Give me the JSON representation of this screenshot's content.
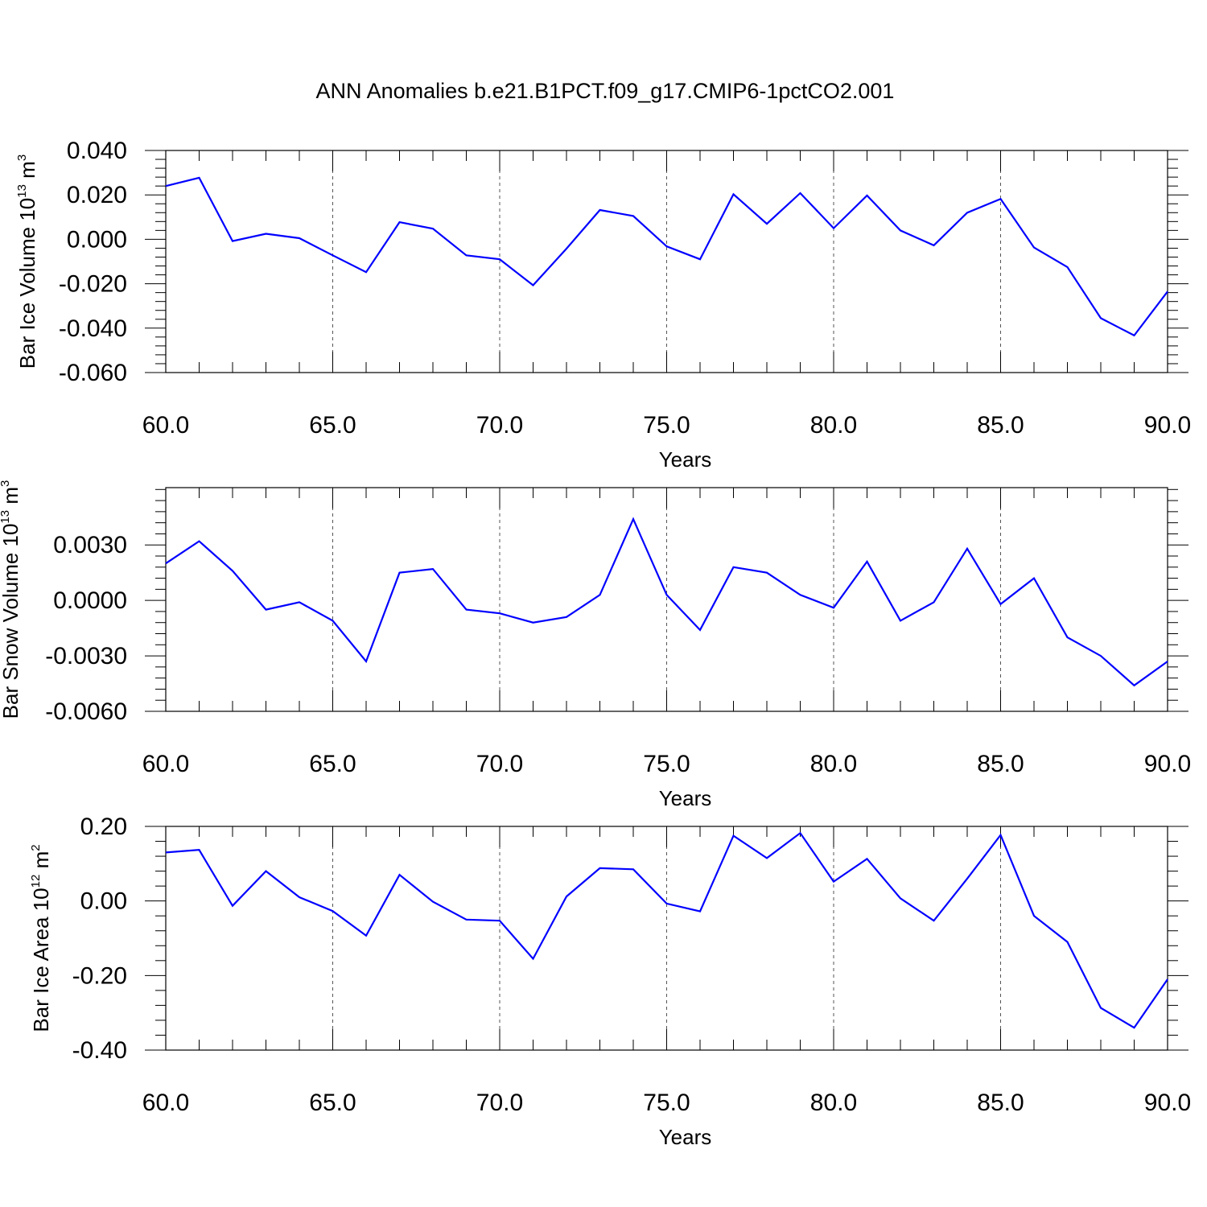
{
  "figure": {
    "title": "ANN Anomalies b.e21.B1PCT.f09_g17.CMIP6-1pctCO2.001",
    "line_color": "#0000ff",
    "grid_color": "#555555"
  },
  "chart_data": [
    {
      "type": "line",
      "xlabel": "Years",
      "ylabel_parts": {
        "main": "Bar Ice Volume 10",
        "sup": "13",
        "unit": " m",
        "unit_sup": "3"
      },
      "xlim": [
        60,
        90
      ],
      "ylim": [
        -0.06,
        0.04
      ],
      "x_ticks": [
        60,
        65,
        70,
        75,
        80,
        85,
        90
      ],
      "x_tick_labels": [
        "60.0",
        "65.0",
        "70.0",
        "75.0",
        "80.0",
        "85.0",
        "90.0"
      ],
      "y_ticks": [
        0.04,
        0.02,
        0.0,
        -0.02,
        -0.04,
        -0.06
      ],
      "y_tick_labels": [
        "0.040",
        "0.020",
        "0.000",
        "-0.020",
        "-0.040",
        "-0.060"
      ],
      "grid": "vertical dashed",
      "x": [
        60,
        61,
        62,
        63,
        64,
        65,
        66,
        67,
        68,
        69,
        70,
        71,
        72,
        73,
        74,
        75,
        76,
        77,
        78,
        79,
        80,
        81,
        82,
        83,
        84,
        85,
        86,
        87,
        88,
        89,
        90
      ],
      "y": [
        0.024,
        0.0277,
        -0.0008,
        0.0025,
        0.0005,
        -0.0072,
        -0.0148,
        0.0077,
        0.0048,
        -0.0072,
        -0.009,
        -0.0207,
        -0.0042,
        0.0132,
        0.0105,
        -0.0032,
        -0.009,
        0.0203,
        0.007,
        0.0208,
        0.005,
        0.0197,
        0.004,
        -0.0027,
        0.012,
        0.0182,
        -0.0037,
        -0.0125,
        -0.0355,
        -0.0433,
        -0.0235
      ]
    },
    {
      "type": "line",
      "xlabel": "Years",
      "ylabel_parts": {
        "main": "Bar Snow Volume 10",
        "sup": "13",
        "unit": " m",
        "unit_sup": "3"
      },
      "xlim": [
        60,
        90
      ],
      "ylim": [
        -0.006,
        0.0061
      ],
      "x_ticks": [
        60,
        65,
        70,
        75,
        80,
        85,
        90
      ],
      "x_tick_labels": [
        "60.0",
        "65.0",
        "70.0",
        "75.0",
        "80.0",
        "85.0",
        "90.0"
      ],
      "y_ticks": [
        0.003,
        0.0,
        -0.003,
        -0.006
      ],
      "y_tick_labels": [
        "0.0030",
        "0.0000",
        "-0.0030",
        "-0.0060"
      ],
      "grid": "vertical dashed",
      "x": [
        60,
        61,
        62,
        63,
        64,
        65,
        66,
        67,
        68,
        69,
        70,
        71,
        72,
        73,
        74,
        75,
        76,
        77,
        78,
        79,
        80,
        81,
        82,
        83,
        84,
        85,
        86,
        87,
        88,
        89,
        90
      ],
      "y": [
        0.002,
        0.0032,
        0.0016,
        -0.0005,
        -0.0001,
        -0.0011,
        -0.0033,
        0.0015,
        0.0017,
        -0.0005,
        -0.0007,
        -0.0012,
        -0.0009,
        0.0003,
        0.0044,
        0.0003,
        -0.0016,
        0.0018,
        0.0015,
        0.0003,
        -0.0004,
        0.0021,
        -0.0011,
        -0.0001,
        0.0028,
        -0.0002,
        0.0012,
        -0.002,
        -0.003,
        -0.0046,
        -0.0033
      ]
    },
    {
      "type": "line",
      "xlabel": "Years",
      "ylabel_parts": {
        "main": "Bar Ice Area 10",
        "sup": "12",
        "unit": " m",
        "unit_sup": "2"
      },
      "xlim": [
        60,
        90
      ],
      "ylim": [
        -0.4,
        0.2
      ],
      "x_ticks": [
        60,
        65,
        70,
        75,
        80,
        85,
        90
      ],
      "x_tick_labels": [
        "60.0",
        "65.0",
        "70.0",
        "75.0",
        "80.0",
        "85.0",
        "90.0"
      ],
      "y_ticks": [
        0.2,
        0.0,
        -0.2,
        -0.4
      ],
      "y_tick_labels": [
        "0.20",
        "0.00",
        "-0.20",
        "-0.40"
      ],
      "grid": "vertical dashed",
      "x": [
        60,
        61,
        62,
        63,
        64,
        65,
        66,
        67,
        68,
        69,
        70,
        71,
        72,
        73,
        74,
        75,
        76,
        77,
        78,
        79,
        80,
        81,
        82,
        83,
        84,
        85,
        86,
        87,
        88,
        89,
        90
      ],
      "y": [
        0.13,
        0.137,
        -0.013,
        0.08,
        0.01,
        -0.027,
        -0.093,
        0.07,
        -0.002,
        -0.05,
        -0.053,
        -0.155,
        0.012,
        0.088,
        0.085,
        -0.007,
        -0.028,
        0.175,
        0.115,
        0.182,
        0.052,
        0.113,
        0.007,
        -0.053,
        0.06,
        0.177,
        -0.04,
        -0.11,
        -0.287,
        -0.34,
        -0.21
      ]
    }
  ]
}
